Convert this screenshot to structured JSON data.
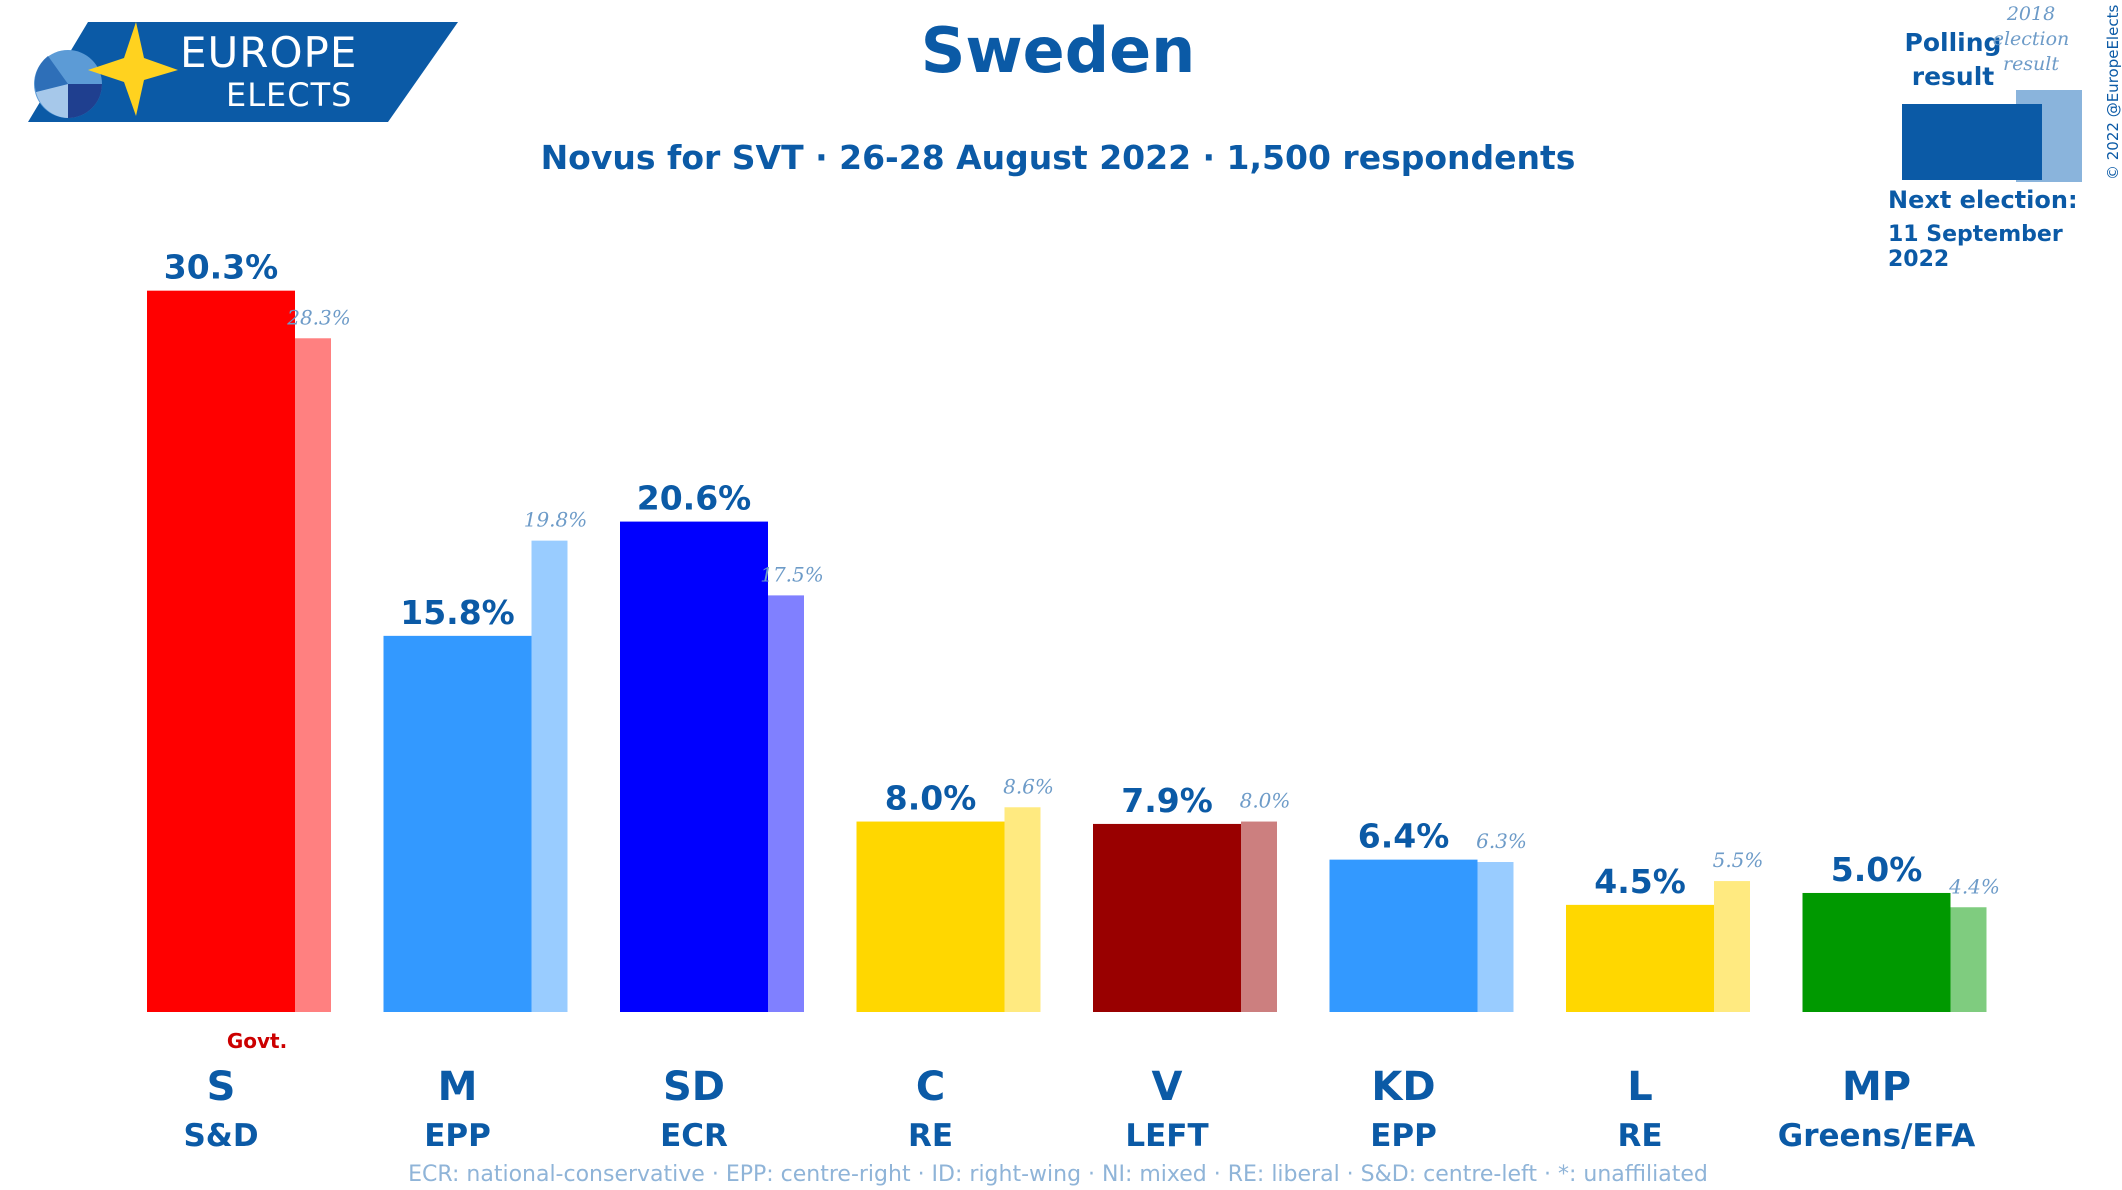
{
  "header": {
    "logo_line1": "EUROPE",
    "logo_line2": "ELECTS",
    "title": "Sweden",
    "subtitle": "Novus for SVT · 26-28 August 2022 · 1,500 respondents"
  },
  "legend": {
    "polling_label": "Polling result",
    "previous_label": "2018 election result",
    "next_election_label": "Next election:",
    "next_election_date": "11 September 2022",
    "copyright": "© 2022 @EuropeElects"
  },
  "footnote": "ECR: national-conservative · EPP: centre-right · ID: right-wing · NI: mixed · RE: liberal · S&D: centre-left · *: unaffiliated",
  "colors": {
    "brand": "#0b5aa6",
    "legend_poll": "#0b5aa6",
    "legend_prev": "#8ab4dc",
    "govt_label": "#cc0000"
  },
  "chart_data": {
    "type": "bar",
    "ylim": [
      0,
      31
    ],
    "categories": [
      "S",
      "M",
      "SD",
      "C",
      "V",
      "KD",
      "L",
      "MP"
    ],
    "groups": [
      "S&D",
      "EPP",
      "ECR",
      "RE",
      "LEFT",
      "EPP",
      "RE",
      "Greens/EFA"
    ],
    "series": [
      {
        "values": [
          30.3,
          15.8,
          20.6,
          8.0,
          7.9,
          6.4,
          4.5,
          5.0
        ],
        "labels": [
          "30.3%",
          "15.8%",
          "20.6%",
          "8.0%",
          "7.9%",
          "6.4%",
          "4.5%",
          "5.0%"
        ],
        "colors": [
          "#ff0000",
          "#3399ff",
          "#0000ff",
          "#ffd700",
          "#990000",
          "#3399ff",
          "#ffd700",
          "#009900"
        ]
      },
      {
        "values": [
          28.3,
          19.8,
          17.5,
          8.6,
          8.0,
          6.3,
          5.5,
          4.4
        ],
        "labels": [
          "28.3%",
          "19.8%",
          "17.5%",
          "8.6%",
          "8.0%",
          "6.3%",
          "5.5%",
          "4.4%"
        ],
        "colors": [
          "#ff8080",
          "#99ccff",
          "#8080ff",
          "#ffea80",
          "#cc7f7f",
          "#99ccff",
          "#ffea80",
          "#7fcc7f"
        ]
      }
    ],
    "annotations": [
      {
        "category": "S",
        "text": "Govt."
      }
    ]
  }
}
